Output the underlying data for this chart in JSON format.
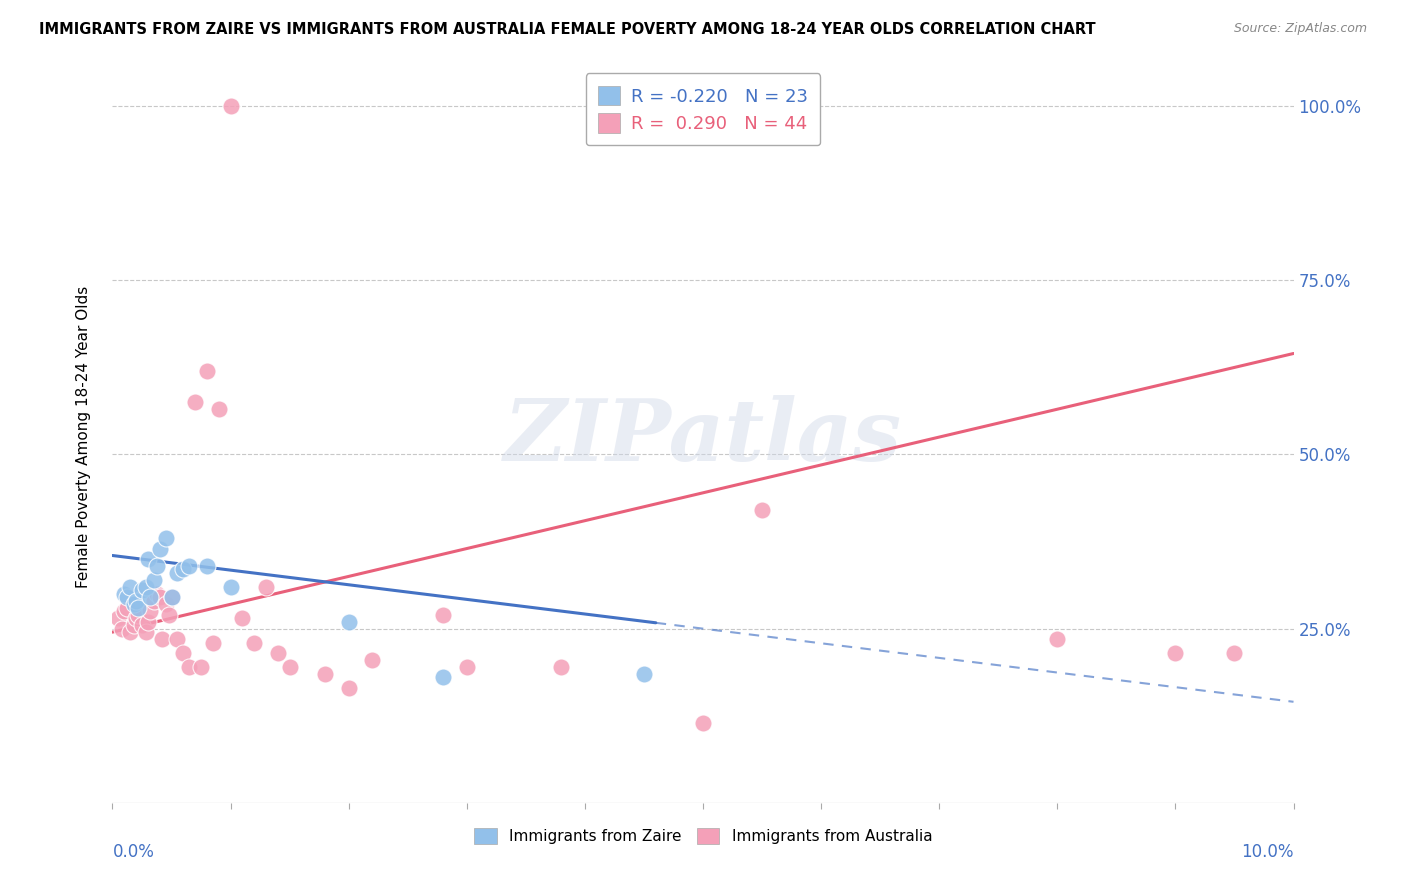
{
  "title": "IMMIGRANTS FROM ZAIRE VS IMMIGRANTS FROM AUSTRALIA FEMALE POVERTY AMONG 18-24 YEAR OLDS CORRELATION CHART",
  "source": "Source: ZipAtlas.com",
  "ylabel": "Female Poverty Among 18-24 Year Olds",
  "legend_zaire": "Immigrants from Zaire",
  "legend_australia": "Immigrants from Australia",
  "R_zaire": -0.22,
  "N_zaire": 23,
  "R_australia": 0.29,
  "N_australia": 44,
  "color_zaire": "#92c0ea",
  "color_australia": "#f4a0b8",
  "color_trendline_zaire": "#4472c4",
  "color_trendline_australia": "#e8607a",
  "color_axis_labels": "#4472c4",
  "background": "#ffffff",
  "zaire_points": [
    [
      0.001,
      0.3
    ],
    [
      0.0012,
      0.295
    ],
    [
      0.0015,
      0.31
    ],
    [
      0.0018,
      0.285
    ],
    [
      0.002,
      0.29
    ],
    [
      0.0022,
      0.28
    ],
    [
      0.0025,
      0.305
    ],
    [
      0.0028,
      0.31
    ],
    [
      0.003,
      0.35
    ],
    [
      0.0032,
      0.295
    ],
    [
      0.0035,
      0.32
    ],
    [
      0.0038,
      0.34
    ],
    [
      0.004,
      0.365
    ],
    [
      0.0045,
      0.38
    ],
    [
      0.005,
      0.295
    ],
    [
      0.0055,
      0.33
    ],
    [
      0.006,
      0.335
    ],
    [
      0.0065,
      0.34
    ],
    [
      0.008,
      0.34
    ],
    [
      0.01,
      0.31
    ],
    [
      0.02,
      0.26
    ],
    [
      0.028,
      0.18
    ],
    [
      0.045,
      0.185
    ]
  ],
  "australia_points": [
    [
      0.0005,
      0.265
    ],
    [
      0.0008,
      0.25
    ],
    [
      0.001,
      0.275
    ],
    [
      0.0012,
      0.28
    ],
    [
      0.0015,
      0.245
    ],
    [
      0.0018,
      0.255
    ],
    [
      0.002,
      0.265
    ],
    [
      0.0022,
      0.27
    ],
    [
      0.0025,
      0.255
    ],
    [
      0.0028,
      0.245
    ],
    [
      0.003,
      0.26
    ],
    [
      0.0032,
      0.275
    ],
    [
      0.0035,
      0.29
    ],
    [
      0.0038,
      0.3
    ],
    [
      0.004,
      0.295
    ],
    [
      0.0042,
      0.235
    ],
    [
      0.0045,
      0.285
    ],
    [
      0.0048,
      0.27
    ],
    [
      0.005,
      0.295
    ],
    [
      0.0055,
      0.235
    ],
    [
      0.006,
      0.215
    ],
    [
      0.0065,
      0.195
    ],
    [
      0.007,
      0.575
    ],
    [
      0.0075,
      0.195
    ],
    [
      0.008,
      0.62
    ],
    [
      0.0085,
      0.23
    ],
    [
      0.009,
      0.565
    ],
    [
      0.01,
      1.0
    ],
    [
      0.011,
      0.265
    ],
    [
      0.012,
      0.23
    ],
    [
      0.013,
      0.31
    ],
    [
      0.014,
      0.215
    ],
    [
      0.015,
      0.195
    ],
    [
      0.018,
      0.185
    ],
    [
      0.02,
      0.165
    ],
    [
      0.022,
      0.205
    ],
    [
      0.028,
      0.27
    ],
    [
      0.03,
      0.195
    ],
    [
      0.038,
      0.195
    ],
    [
      0.05,
      0.115
    ],
    [
      0.055,
      0.42
    ],
    [
      0.08,
      0.235
    ],
    [
      0.09,
      0.215
    ],
    [
      0.095,
      0.215
    ]
  ],
  "xmin": 0.0,
  "xmax": 0.1,
  "ymin": 0.0,
  "ymax": 1.05,
  "trendline_zaire_x0": 0.0,
  "trendline_zaire_y0": 0.355,
  "trendline_zaire_x1": 0.1,
  "trendline_zaire_y1": 0.145,
  "trendline_zaire_solid_end": 0.046,
  "trendline_australia_x0": 0.0,
  "trendline_australia_y0": 0.245,
  "trendline_australia_x1": 0.1,
  "trendline_australia_y1": 0.645,
  "watermark": "ZIPatlas",
  "figsize": [
    14.06,
    8.92
  ],
  "dpi": 100
}
